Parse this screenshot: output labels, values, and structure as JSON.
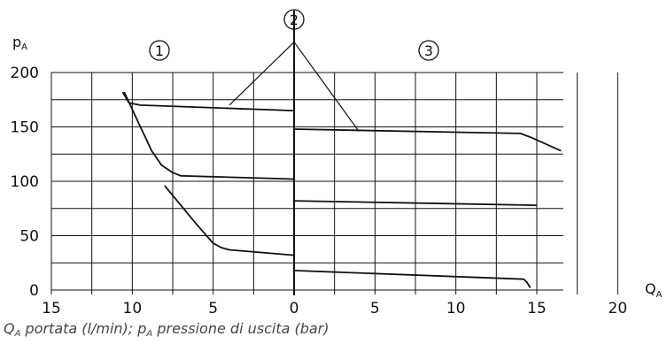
{
  "caption": {
    "q_symbol": "Q",
    "q_sub": "A",
    "q_text": " portata (l/min); ",
    "p_symbol": "p",
    "p_sub": "A",
    "p_text": " pressione di uscita (bar)"
  },
  "chart_data": {
    "type": "line",
    "ylabel": "p",
    "ylabel_sub": "A",
    "xlabel": "Q",
    "xlabel_sub": "A",
    "ylim": [
      0,
      200
    ],
    "y_ticks": [
      0,
      50,
      100,
      150,
      200
    ],
    "left_panel": {
      "marker": "1",
      "x_direction": "reversed",
      "xlim": [
        15,
        0
      ],
      "x_ticks": [
        15,
        10,
        5,
        0
      ]
    },
    "right_panel": {
      "marker": "3",
      "xlim": [
        0,
        20
      ],
      "x_ticks": [
        0,
        5,
        10,
        15,
        20
      ]
    },
    "shared_marker": "2",
    "grid": true,
    "series": [
      {
        "panel": "left",
        "points": [
          [
            10.6,
            182
          ],
          [
            10.2,
            172
          ],
          [
            9.5,
            170
          ],
          [
            0,
            165
          ]
        ]
      },
      {
        "panel": "left",
        "points": [
          [
            10.5,
            182
          ],
          [
            9.5,
            150
          ],
          [
            8.8,
            128
          ],
          [
            8.2,
            115
          ],
          [
            7.5,
            108
          ],
          [
            7,
            105
          ],
          [
            0,
            102
          ]
        ]
      },
      {
        "panel": "left",
        "points": [
          [
            8,
            96
          ],
          [
            7,
            78
          ],
          [
            6,
            60
          ],
          [
            5,
            43
          ],
          [
            4.5,
            39
          ],
          [
            4,
            37
          ],
          [
            0,
            32
          ]
        ]
      },
      {
        "panel": "right",
        "points": [
          [
            0,
            148
          ],
          [
            14,
            144
          ],
          [
            14.7,
            140
          ],
          [
            16.5,
            128
          ]
        ]
      },
      {
        "panel": "right",
        "points": [
          [
            0,
            82
          ],
          [
            15,
            78
          ]
        ]
      },
      {
        "panel": "right",
        "points": [
          [
            0,
            18
          ],
          [
            14.2,
            10
          ],
          [
            14.4,
            7
          ],
          [
            14.6,
            2
          ]
        ]
      }
    ],
    "callouts": [
      {
        "from": [
          -4,
          170
        ],
        "to": [
          0,
          228
        ]
      },
      {
        "from": [
          4,
          146
        ],
        "to": [
          0,
          228
        ]
      }
    ]
  }
}
